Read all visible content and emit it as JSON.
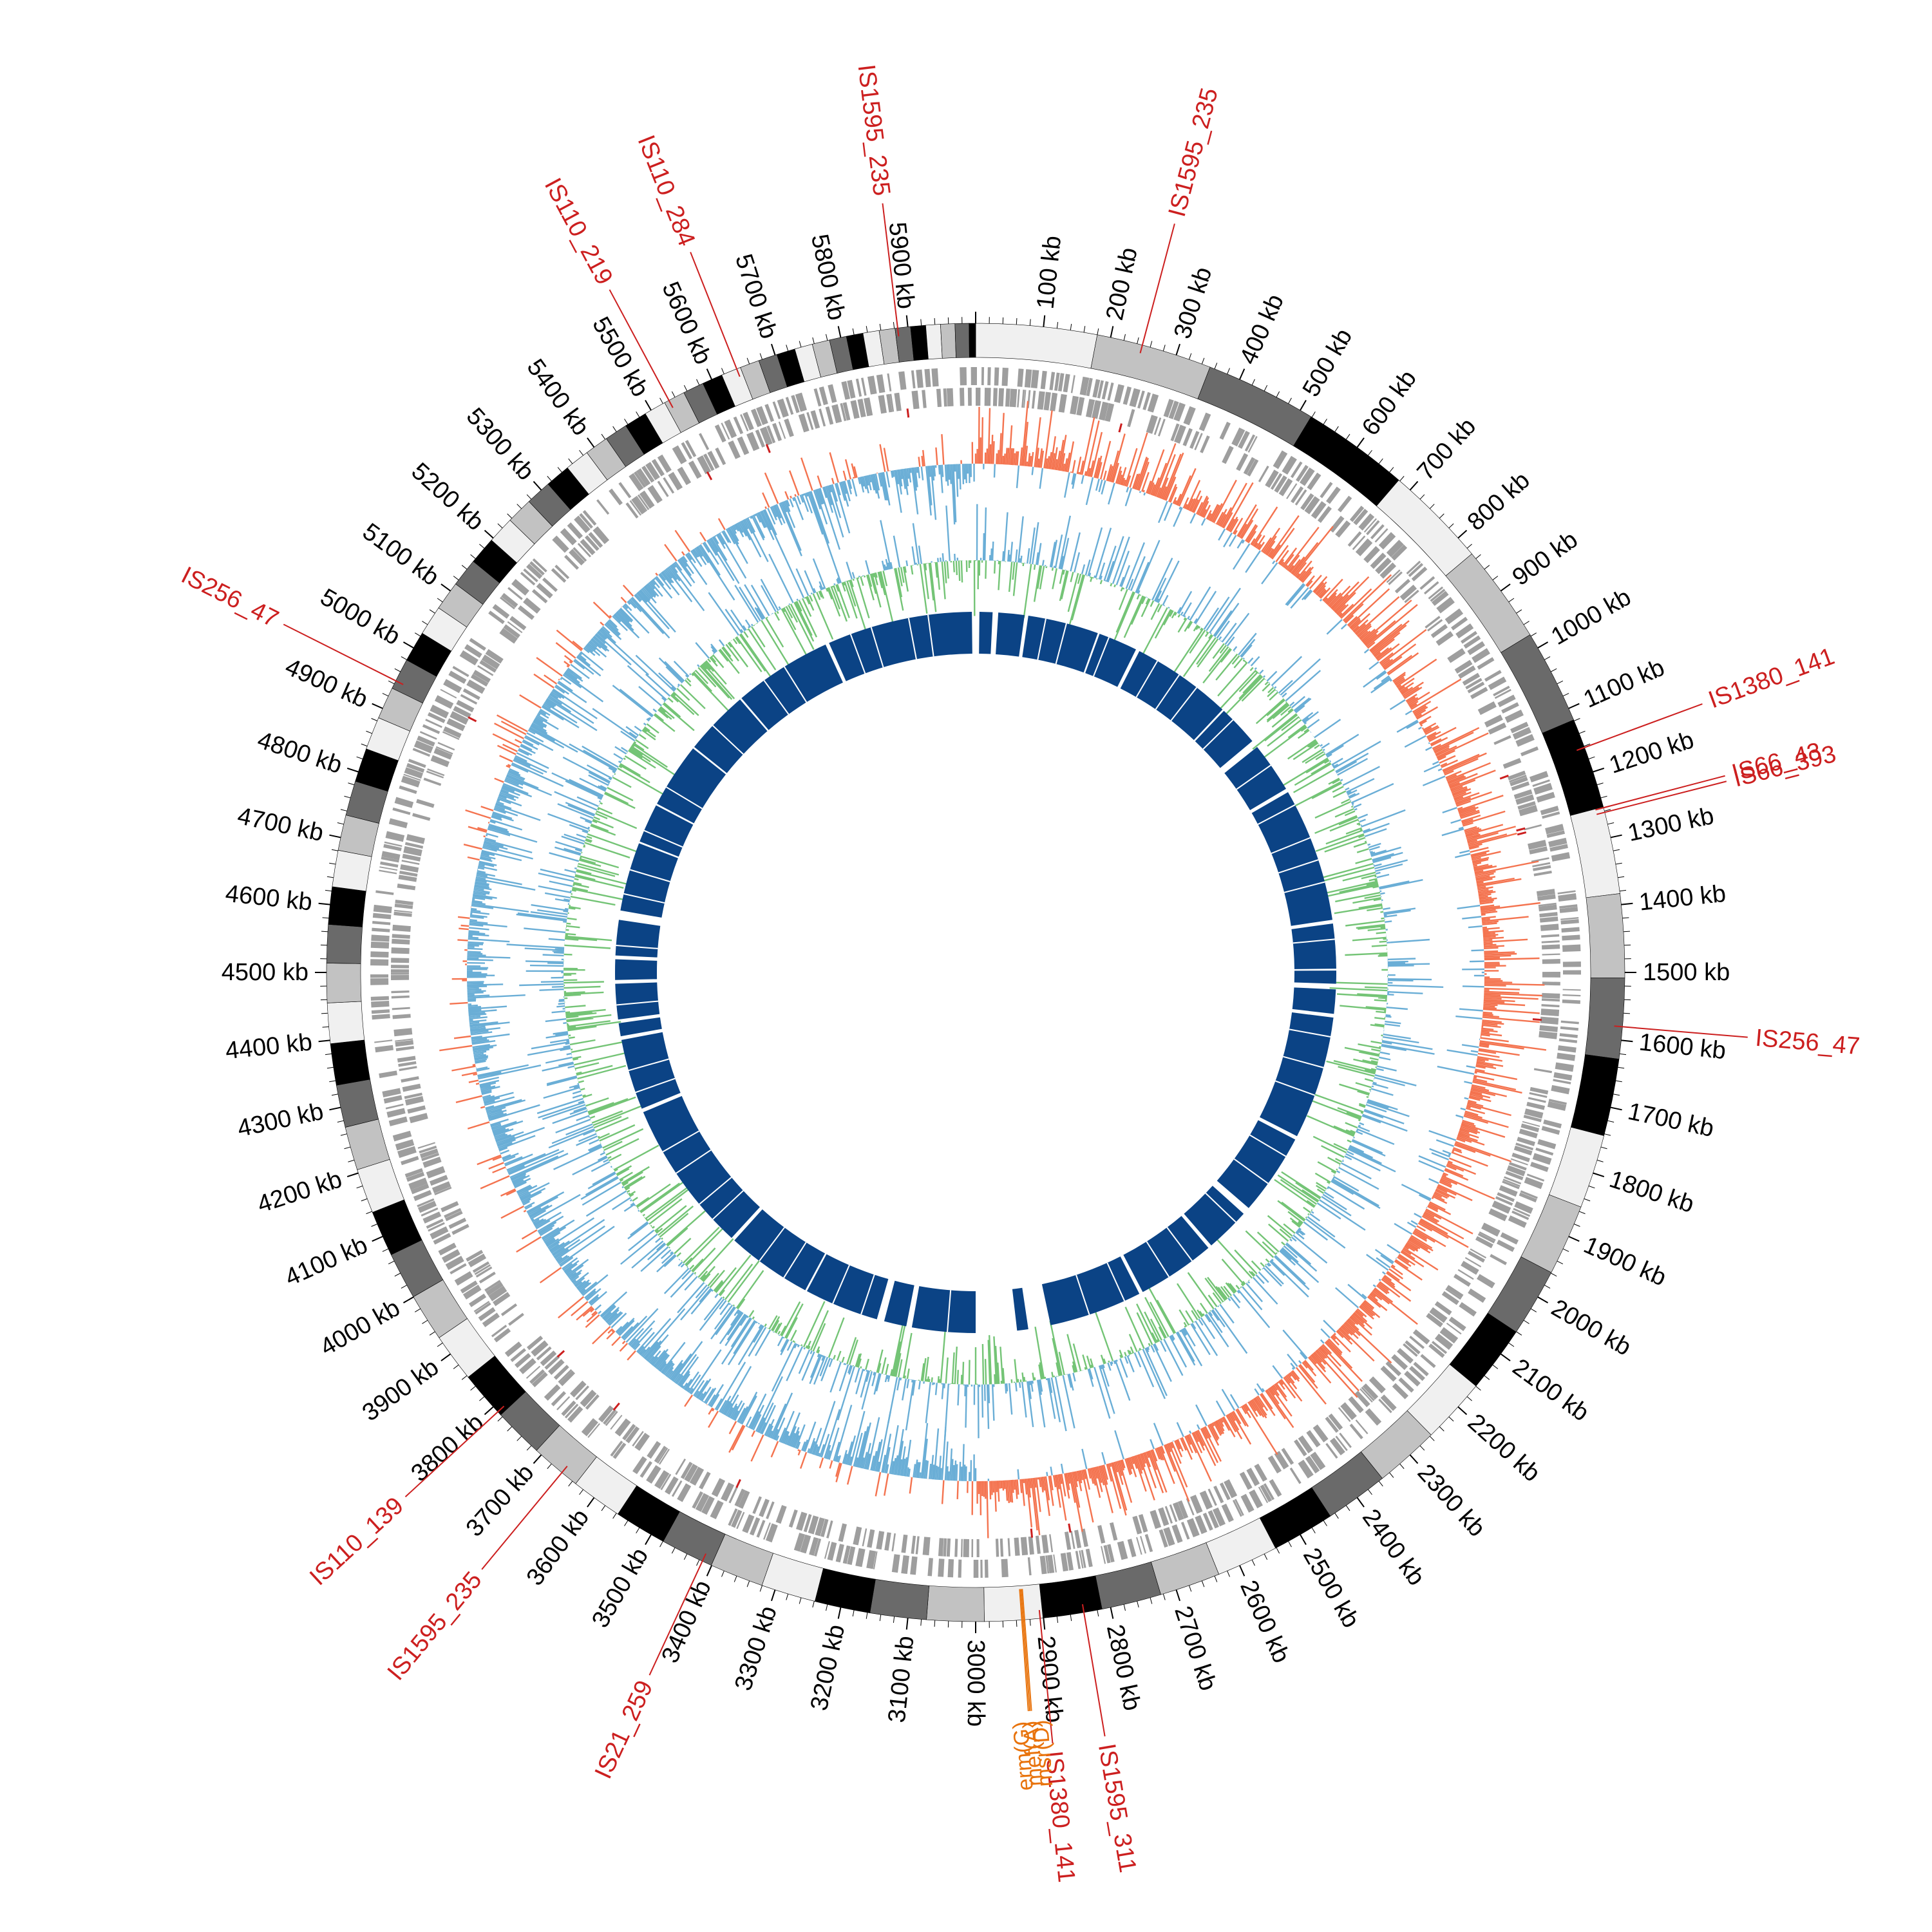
{
  "genome_map": {
    "total_length_kb": 6000,
    "tick_unit": "kb",
    "ticks": [
      {
        "label": "100 kb",
        "pos": 100
      },
      {
        "label": "200 kb",
        "pos": 200
      },
      {
        "label": "300 kb",
        "pos": 300
      },
      {
        "label": "400 kb",
        "pos": 400
      },
      {
        "label": "500 kb",
        "pos": 500
      },
      {
        "label": "600 kb",
        "pos": 600
      },
      {
        "label": "700 kb",
        "pos": 700
      },
      {
        "label": "800 kb",
        "pos": 800
      },
      {
        "label": "900 kb",
        "pos": 900
      },
      {
        "label": "1000 kb",
        "pos": 1000
      },
      {
        "label": "1100 kb",
        "pos": 1100
      },
      {
        "label": "1200 kb",
        "pos": 1200
      },
      {
        "label": "1300 kb",
        "pos": 1300
      },
      {
        "label": "1400 kb",
        "pos": 1400
      },
      {
        "label": "1500 kb",
        "pos": 1500
      },
      {
        "label": "1600 kb",
        "pos": 1600
      },
      {
        "label": "1700 kb",
        "pos": 1700
      },
      {
        "label": "1800 kb",
        "pos": 1800
      },
      {
        "label": "1900 kb",
        "pos": 1900
      },
      {
        "label": "2000 kb",
        "pos": 2000
      },
      {
        "label": "2100 kb",
        "pos": 2100
      },
      {
        "label": "2200 kb",
        "pos": 2200
      },
      {
        "label": "2300 kb",
        "pos": 2300
      },
      {
        "label": "2400 kb",
        "pos": 2400
      },
      {
        "label": "2500 kb",
        "pos": 2500
      },
      {
        "label": "2600 kb",
        "pos": 2600
      },
      {
        "label": "2700 kb",
        "pos": 2700
      },
      {
        "label": "2800 kb",
        "pos": 2800
      },
      {
        "label": "2900 kb",
        "pos": 2900
      },
      {
        "label": "3000 kb",
        "pos": 3000
      },
      {
        "label": "3100 kb",
        "pos": 3100
      },
      {
        "label": "3200 kb",
        "pos": 3200
      },
      {
        "label": "3300 kb",
        "pos": 3300
      },
      {
        "label": "3400 kb",
        "pos": 3400
      },
      {
        "label": "3500 kb",
        "pos": 3500
      },
      {
        "label": "3600 kb",
        "pos": 3600
      },
      {
        "label": "3700 kb",
        "pos": 3700
      },
      {
        "label": "3800 kb",
        "pos": 3800
      },
      {
        "label": "3900 kb",
        "pos": 3900
      },
      {
        "label": "4000 kb",
        "pos": 4000
      },
      {
        "label": "4100 kb",
        "pos": 4100
      },
      {
        "label": "4200 kb",
        "pos": 4200
      },
      {
        "label": "4300 kb",
        "pos": 4300
      },
      {
        "label": "4400 kb",
        "pos": 4400
      },
      {
        "label": "4500 kb",
        "pos": 4500
      },
      {
        "label": "4600 kb",
        "pos": 4600
      },
      {
        "label": "4700 kb",
        "pos": 4700
      },
      {
        "label": "4800 kb",
        "pos": 4800
      },
      {
        "label": "4900 kb",
        "pos": 4900
      },
      {
        "label": "5000 kb",
        "pos": 5000
      },
      {
        "label": "5100 kb",
        "pos": 5100
      },
      {
        "label": "5200 kb",
        "pos": 5200
      },
      {
        "label": "5300 kb",
        "pos": 5300
      },
      {
        "label": "5400 kb",
        "pos": 5400
      },
      {
        "label": "5500 kb",
        "pos": 5500
      },
      {
        "label": "5600 kb",
        "pos": 5600
      },
      {
        "label": "5700 kb",
        "pos": 5700
      },
      {
        "label": "5800 kb",
        "pos": 5800
      },
      {
        "label": "5900 kb",
        "pos": 5900
      }
    ],
    "is_elements": [
      {
        "label": "IS1595_235",
        "pos": 248
      },
      {
        "label": "IS1380_141",
        "pos": 1162
      },
      {
        "label": "IS66_43",
        "pos": 1255
      },
      {
        "label": "IS66_393",
        "pos": 1262
      },
      {
        "label": "IS256_47",
        "pos": 1580
      },
      {
        "label": "IS1595_311",
        "pos": 2840
      },
      {
        "label": "IS1380_141",
        "pos": 2905
      },
      {
        "label": "IS21_259",
        "pos": 3415
      },
      {
        "label": "IS1595_235",
        "pos": 3660
      },
      {
        "label": "IS110_139",
        "pos": 3790
      },
      {
        "label": "IS256_47",
        "pos": 4945
      },
      {
        "label": "IS110_219",
        "pos": 5530
      },
      {
        "label": "IS110_284",
        "pos": 5640
      },
      {
        "label": "IS1595_235",
        "pos": 5885
      }
    ],
    "resistance_genes": [
      {
        "label": "erm(G)",
        "pos": 2928
      },
      {
        "label": "mef(A)",
        "pos": 2930
      },
      {
        "label": "msr(D)",
        "pos": 2932
      }
    ],
    "colors": {
      "is_label": "#cc1f1f",
      "gene_label": "#e8730c",
      "gc_skew_positive": "#f4734f",
      "gc_skew_negative": "#6aaed6",
      "gc_content_positive": "#74c476",
      "gc_content_negative": "#6aaed6",
      "cds_track": "#9e9e9e",
      "inner_blocks": "#0b4385"
    },
    "inner_blocks": [
      [
        10,
        45
      ],
      [
        60,
        130
      ],
      [
        140,
        330
      ],
      [
        335,
        440
      ],
      [
        450,
        720
      ],
      [
        725,
        835
      ],
      [
        855,
        990
      ],
      [
        1000,
        1360
      ],
      [
        1370,
        1490
      ],
      [
        1495,
        1530
      ],
      [
        1545,
        1610
      ],
      [
        1620,
        1950
      ],
      [
        1960,
        2180
      ],
      [
        2200,
        2320
      ],
      [
        2330,
        2540
      ],
      [
        2550,
        2800
      ],
      [
        2860,
        2890
      ],
      [
        3000,
        3170
      ],
      [
        3185,
        3245
      ],
      [
        3265,
        3465
      ],
      [
        3470,
        3700
      ],
      [
        3710,
        4120
      ],
      [
        4130,
        4320
      ],
      [
        4330,
        4365
      ],
      [
        4375,
        4470
      ],
      [
        4480,
        4535
      ],
      [
        4545,
        4640
      ],
      [
        4665,
        4850
      ],
      [
        4855,
        4960
      ],
      [
        4965,
        5140
      ],
      [
        5145,
        5320
      ],
      [
        5325,
        5590
      ],
      [
        5600,
        5990
      ]
    ]
  }
}
